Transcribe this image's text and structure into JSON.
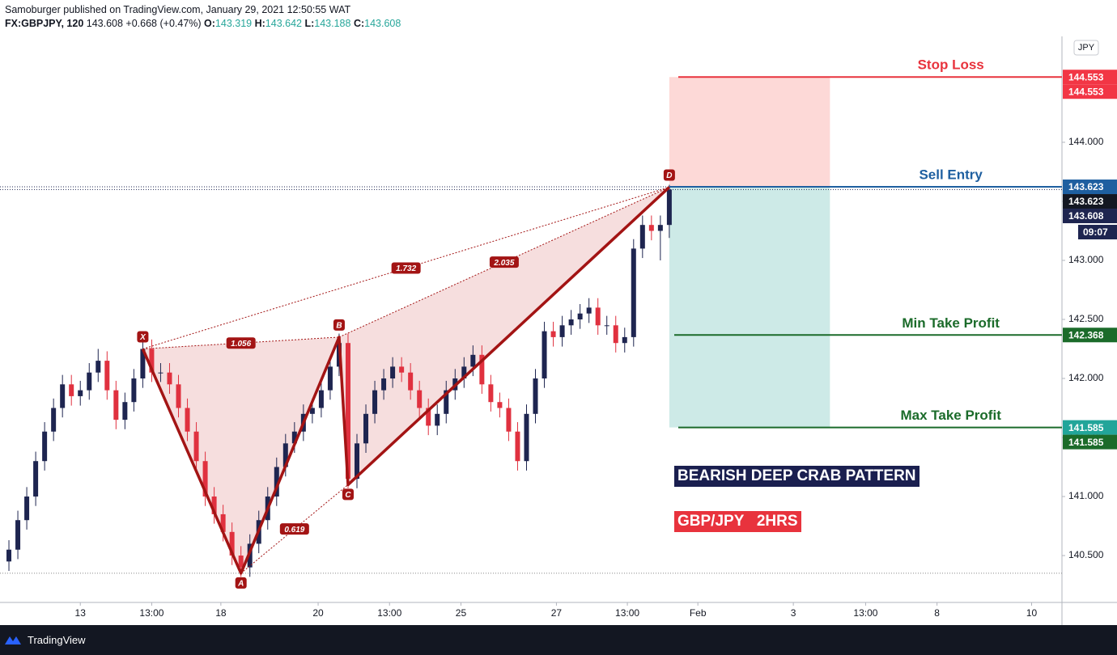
{
  "chart_data": {
    "type": "candlestick",
    "header": {
      "line1": "Samoburger published on TradingView.com, January 29, 2021 12:50:55 WAT",
      "symbol": "FX:GBPJPY, 120",
      "last": "143.608",
      "change": "+0.668 (+0.47%)",
      "o_label": "O:",
      "o": "143.319",
      "h_label": "H:",
      "h": "143.642",
      "l_label": "L:",
      "l": "143.188",
      "c_label": "C:",
      "c": "143.608"
    },
    "currency": "JPY",
    "x": [
      2,
      4,
      6,
      8,
      10,
      12,
      14,
      16,
      18,
      20,
      22,
      24,
      26,
      28,
      30,
      32,
      34,
      36,
      38,
      40,
      42,
      44,
      46,
      48,
      50,
      52,
      54,
      56,
      58,
      60,
      62,
      64,
      66,
      68,
      70,
      72,
      74,
      76,
      78,
      80,
      82,
      84,
      86,
      88,
      90,
      92,
      94,
      96,
      98,
      100,
      102,
      104,
      106,
      108,
      110,
      112,
      114,
      116,
      118,
      120,
      122,
      124,
      126,
      128,
      130,
      132,
      134,
      136,
      138,
      140,
      142,
      144,
      146,
      148,
      150
    ],
    "open": [
      140.45,
      140.55,
      140.8,
      141.0,
      141.3,
      141.55,
      141.75,
      141.95,
      141.85,
      141.9,
      142.05,
      142.15,
      141.9,
      141.65,
      141.8,
      142.0,
      142.25,
      142.05,
      142.05,
      141.95,
      141.75,
      141.55,
      141.3,
      141.0,
      140.85,
      140.7,
      140.5,
      140.4,
      140.6,
      140.8,
      141.0,
      141.25,
      141.45,
      141.55,
      141.7,
      141.75,
      141.9,
      142.1,
      142.3,
      141.15,
      141.45,
      141.7,
      141.9,
      142.0,
      142.1,
      142.05,
      141.9,
      141.75,
      141.6,
      141.7,
      141.9,
      142.0,
      142.1,
      142.2,
      141.95,
      141.8,
      141.75,
      141.55,
      141.3,
      141.7,
      142.0,
      142.4,
      142.35,
      142.45,
      142.5,
      142.55,
      142.6,
      142.45,
      142.45,
      142.3,
      142.35,
      143.1,
      143.3,
      143.25,
      143.3
    ],
    "high": [
      140.63,
      140.88,
      141.08,
      141.38,
      141.63,
      141.83,
      142.03,
      142.03,
      141.98,
      142.13,
      142.25,
      142.23,
      141.98,
      141.88,
      142.08,
      142.33,
      142.33,
      142.13,
      142.13,
      142.03,
      141.83,
      141.63,
      141.38,
      141.08,
      140.93,
      140.78,
      140.58,
      140.68,
      140.88,
      141.08,
      141.33,
      141.53,
      141.63,
      141.78,
      141.83,
      141.98,
      142.18,
      142.38,
      142.38,
      141.53,
      141.78,
      141.98,
      142.08,
      142.18,
      142.18,
      142.13,
      141.98,
      141.83,
      141.78,
      141.98,
      142.08,
      142.18,
      142.28,
      142.28,
      142.03,
      141.88,
      141.83,
      141.63,
      141.78,
      142.08,
      142.48,
      142.48,
      142.53,
      142.58,
      142.63,
      142.68,
      142.68,
      142.53,
      142.53,
      142.43,
      143.18,
      143.38,
      143.38,
      143.38,
      143.64
    ],
    "low": [
      140.37,
      140.47,
      140.72,
      140.92,
      141.22,
      141.47,
      141.67,
      141.77,
      141.77,
      141.82,
      141.97,
      141.82,
      141.57,
      141.57,
      141.72,
      141.92,
      141.97,
      141.97,
      141.87,
      141.67,
      141.47,
      141.22,
      140.92,
      140.77,
      140.62,
      140.42,
      140.32,
      140.32,
      140.52,
      140.72,
      140.92,
      141.17,
      141.37,
      141.47,
      141.62,
      141.67,
      141.82,
      142.02,
      141.07,
      141.07,
      141.37,
      141.62,
      141.82,
      141.92,
      141.97,
      141.82,
      141.67,
      141.52,
      141.52,
      141.62,
      141.82,
      141.92,
      142.02,
      141.87,
      141.72,
      141.67,
      141.47,
      141.22,
      141.22,
      141.62,
      141.92,
      142.27,
      142.27,
      142.37,
      142.42,
      142.47,
      142.37,
      142.37,
      142.22,
      142.22,
      142.27,
      143.02,
      143.17,
      143.0,
      143.19
    ],
    "close": [
      140.55,
      140.8,
      141.0,
      141.3,
      141.55,
      141.75,
      141.95,
      141.85,
      141.9,
      142.05,
      142.15,
      141.9,
      141.65,
      141.8,
      142.0,
      142.25,
      142.05,
      142.05,
      141.95,
      141.75,
      141.55,
      141.3,
      141.0,
      140.85,
      140.7,
      140.5,
      140.4,
      140.6,
      140.8,
      141.0,
      141.25,
      141.45,
      141.55,
      141.7,
      141.75,
      141.9,
      142.1,
      142.3,
      141.15,
      141.45,
      141.7,
      141.9,
      142.0,
      142.1,
      142.05,
      141.9,
      141.75,
      141.6,
      141.7,
      141.9,
      142.0,
      142.1,
      142.2,
      141.95,
      141.8,
      141.75,
      141.55,
      141.3,
      141.7,
      142.0,
      142.4,
      142.35,
      142.45,
      142.5,
      142.55,
      142.6,
      142.45,
      142.45,
      142.3,
      142.35,
      143.1,
      143.3,
      143.25,
      143.3,
      143.6
    ],
    "up_color": "#1e2550",
    "down_color": "#e0313f",
    "xlim": [
      0,
      238
    ],
    "xticks": [
      {
        "value": 18,
        "label": "13"
      },
      {
        "value": 34,
        "label": "13:00"
      },
      {
        "value": 49.5,
        "label": "18"
      },
      {
        "value": 71.3,
        "label": "20"
      },
      {
        "value": 87.3,
        "label": "13:00"
      },
      {
        "value": 103.3,
        "label": "25"
      },
      {
        "value": 124.7,
        "label": "27"
      },
      {
        "value": 140.6,
        "label": "13:00"
      },
      {
        "value": 156.4,
        "label": "Feb"
      },
      {
        "value": 177.8,
        "label": "3"
      },
      {
        "value": 194,
        "label": "13:00"
      },
      {
        "value": 210,
        "label": "8"
      },
      {
        "value": 231.2,
        "label": "10"
      }
    ],
    "ylim": [
      140.103,
      144.897
    ],
    "yticks": [
      {
        "value": 140.5,
        "label": "140.500"
      },
      {
        "value": 141,
        "label": "141.000"
      },
      {
        "value": 141.5,
        "label": "141.500"
      },
      {
        "value": 142,
        "label": "142.000"
      },
      {
        "value": 142.5,
        "label": "142.500"
      },
      {
        "value": 143,
        "label": "143.000"
      },
      {
        "value": 143.5,
        "label": "143.500"
      },
      {
        "value": 144,
        "label": "144.000"
      }
    ],
    "pattern": {
      "color": "#a31414",
      "points": [
        {
          "label": "X",
          "x": 32,
          "y": 142.25
        },
        {
          "label": "A",
          "x": 54,
          "y": 140.35
        },
        {
          "label": "B",
          "x": 76,
          "y": 142.35
        },
        {
          "label": "C",
          "x": 78,
          "y": 141.1
        },
        {
          "label": "D",
          "x": 150,
          "y": 143.62
        }
      ],
      "ratios": [
        {
          "label": "1.056",
          "from": 0,
          "to": 2
        },
        {
          "label": "0.619",
          "from": 1,
          "to": 3
        },
        {
          "label": "1.732",
          "from": 0,
          "to": 4
        },
        {
          "label": "2.035",
          "from": 2,
          "to": 4
        }
      ]
    },
    "position": {
      "x_start": 150,
      "x_end": 186,
      "stop": 144.553,
      "entry": 143.623,
      "min_target": 142.368,
      "max_target": 141.585,
      "stop_label": "Stop Loss",
      "entry_label": "Sell Entry",
      "min_target_label": "Min Take Profit",
      "max_target_label": "Max Take Profit"
    },
    "price_tags": [
      {
        "value": 144.553,
        "label": "144.553",
        "color": "#f23645"
      },
      {
        "value": 144.553,
        "label": "144.553",
        "color": "#f23645"
      },
      {
        "value": 143.623,
        "label": "143.623",
        "color": "#1e5fa0"
      },
      {
        "value": 143.623,
        "label": "143.623",
        "color": "#131722"
      },
      {
        "value": 143.608,
        "label": "143.608",
        "color": "#1e2550"
      },
      {
        "value": 142.368,
        "label": "142.368",
        "color": "#1b6b2a"
      },
      {
        "value": 141.585,
        "label": "141.585",
        "color": "#22a59a"
      },
      {
        "value": 141.585,
        "label": "141.585",
        "color": "#1b6b2a"
      }
    ],
    "countdown": "09:07",
    "boxes": [
      "BEARISH DEEP CRAB PATTERN",
      "GBP/JPY   2HRS"
    ],
    "footer": "TradingView"
  }
}
